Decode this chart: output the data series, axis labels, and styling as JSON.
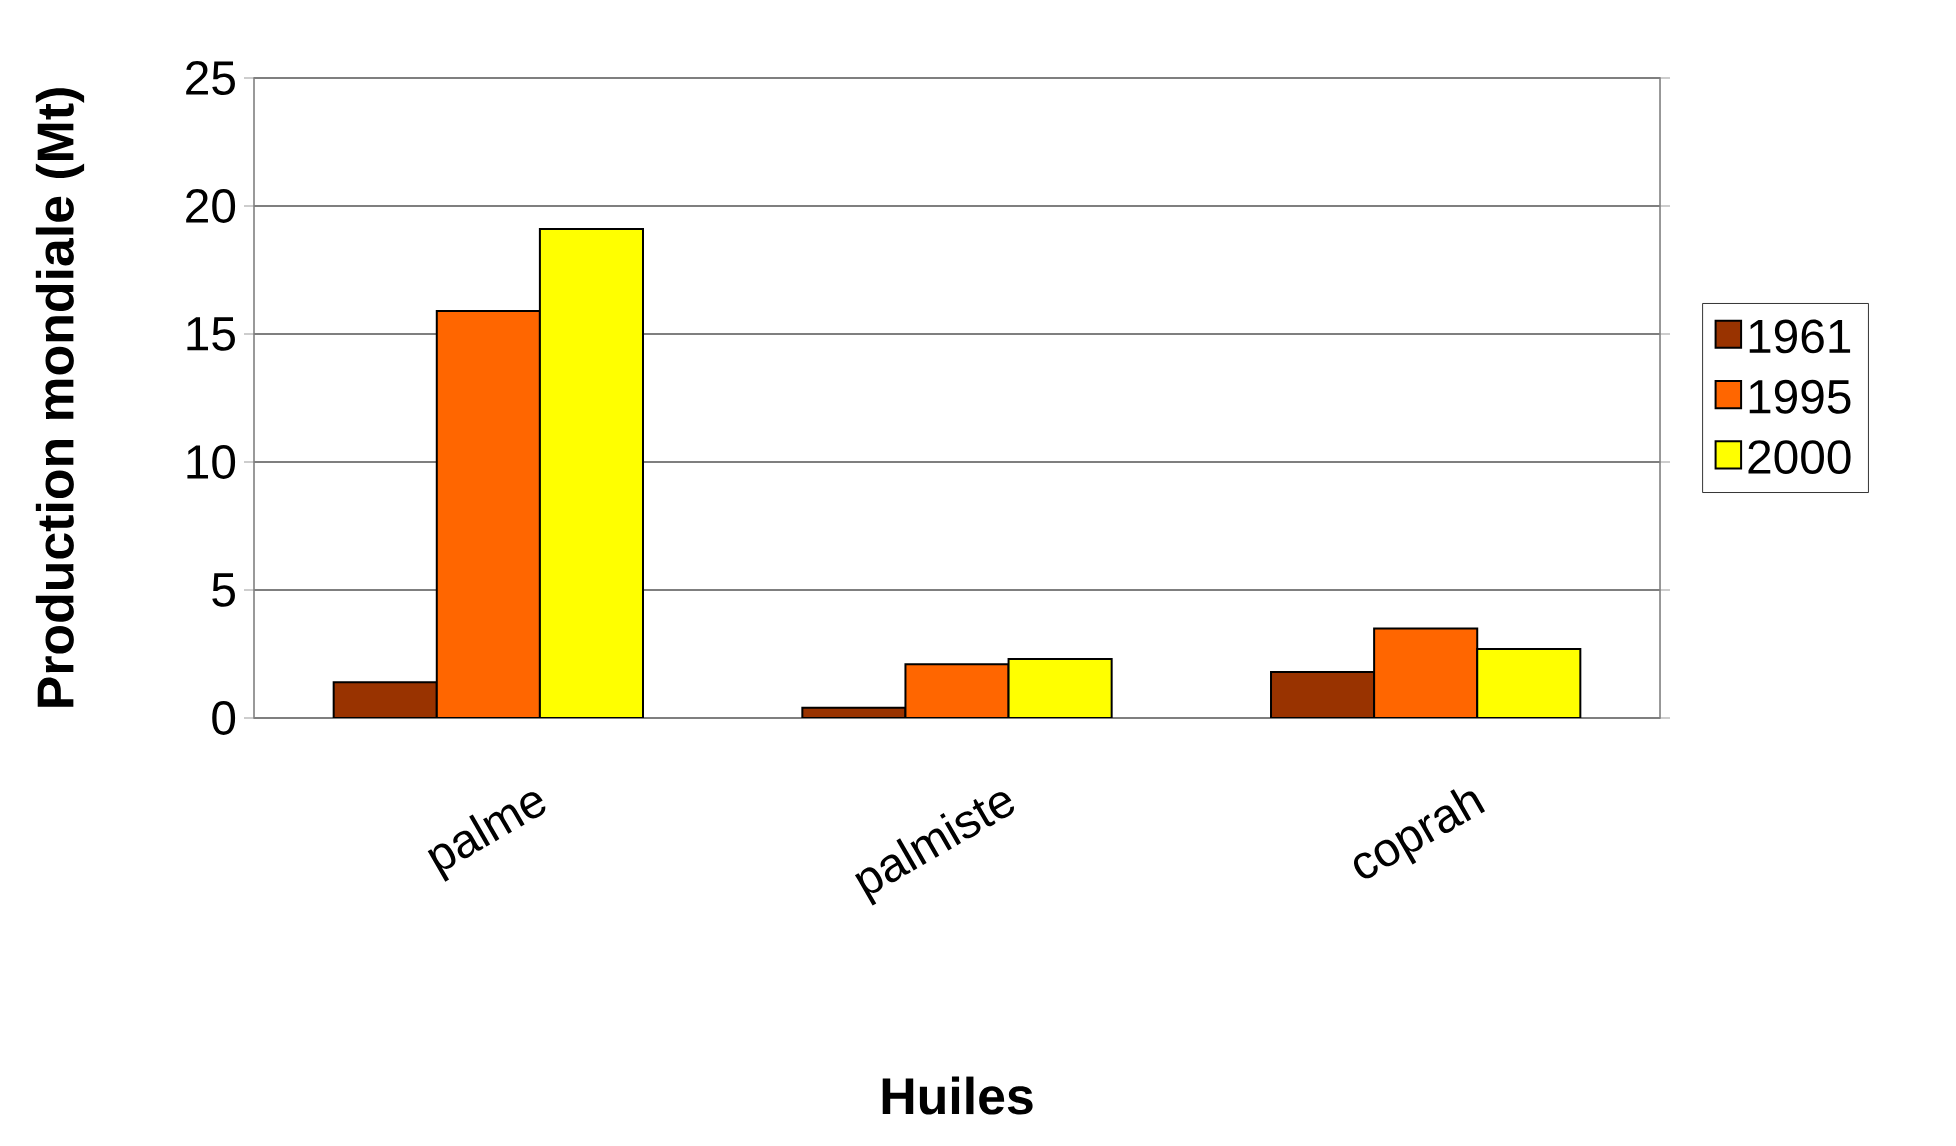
{
  "chart_data": {
    "type": "bar",
    "xlabel": "Huiles",
    "ylabel": "Production mondiale (Mt)",
    "categories": [
      "palme",
      "palmiste",
      "coprah"
    ],
    "series": [
      {
        "name": "1961",
        "color": "#993300",
        "values": [
          1.4,
          0.4,
          1.8
        ]
      },
      {
        "name": "1995",
        "color": "#ff6600",
        "values": [
          15.9,
          2.1,
          3.5
        ]
      },
      {
        "name": "2000",
        "color": "#ffff00",
        "values": [
          19.1,
          2.3,
          2.7
        ]
      }
    ],
    "ylim": [
      0,
      25
    ],
    "yticks": [
      0,
      5,
      10,
      15,
      20,
      25
    ],
    "grid": "y",
    "legend": "right"
  }
}
